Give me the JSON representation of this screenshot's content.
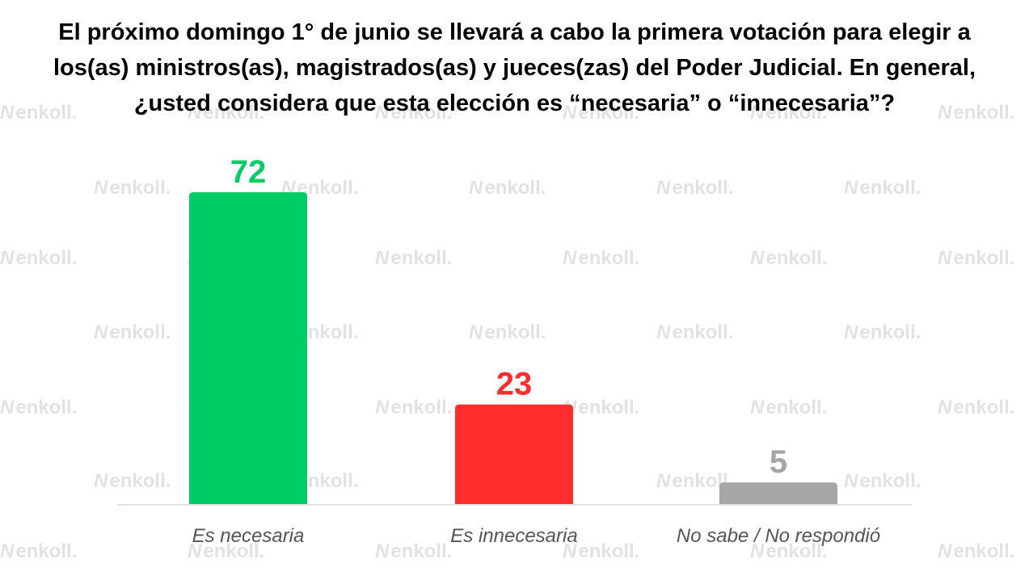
{
  "title": {
    "line1": "El próximo domingo 1° de junio se llevará a cabo la primera votación para elegir a",
    "line2": "los(as) ministros(as), magistrados(as) y jueces(zas) del Poder Judicial. En general,",
    "line3": "¿usted considera que esta elección es “necesaria” o “innecesaria”?"
  },
  "watermark": {
    "text": "enkoll.",
    "mark": "N",
    "color": "#e2e2e2"
  },
  "chart_data": {
    "type": "bar",
    "categories": [
      "Es necesaria",
      "Es innecesaria",
      "No sabe / No respondió"
    ],
    "values": [
      72,
      23,
      5
    ],
    "colors": [
      "#00cc66",
      "#ff2d2d",
      "#a6a6a6"
    ],
    "ylim": [
      0,
      100
    ],
    "grid": false,
    "legend": "none"
  }
}
